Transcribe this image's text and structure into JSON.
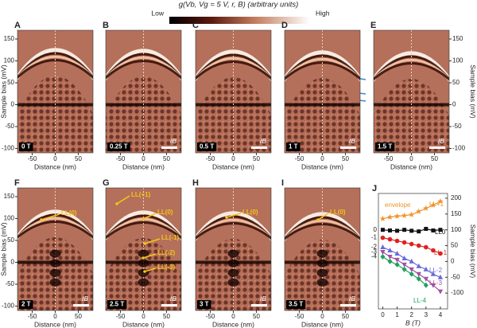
{
  "title": "g(Vb, Vg = 5 V, r, B) (arbitrary units)",
  "colorbar": {
    "low": "Low",
    "high": "High"
  },
  "map_axes": {
    "xlabel": "Distance (nm)",
    "ylabel": "Sample bias (mV)",
    "xlim": [
      -82,
      82
    ],
    "ylim": [
      -110,
      170
    ],
    "xticks": [
      -50,
      0,
      50
    ],
    "yticks": [
      -100,
      -50,
      0,
      50,
      100,
      150
    ]
  },
  "panels": [
    {
      "letter": "A",
      "field": "0 T"
    },
    {
      "letter": "B",
      "field": "0.25 T",
      "scale": "ℓB"
    },
    {
      "letter": "C",
      "field": "0.5 T",
      "scale": "ℓB"
    },
    {
      "letter": "D",
      "field": "1 T",
      "scale": "ℓB"
    },
    {
      "letter": "E",
      "field": "1.5 T",
      "scale": "ℓB"
    },
    {
      "letter": "F",
      "field": "2 T",
      "scale": "ℓB",
      "annotations": [
        "LL(0)"
      ]
    },
    {
      "letter": "G",
      "field": "2.5 T",
      "scale": "ℓB",
      "annotations": [
        "LL(+1)",
        "LL(0)",
        "LL(-1)",
        "LL(-2)",
        "LL(-3)"
      ]
    },
    {
      "letter": "H",
      "field": "3 T",
      "scale": "ℓB",
      "annotations": [
        "LL(0)"
      ]
    },
    {
      "letter": "I",
      "field": "3.5 T",
      "scale": "ℓB",
      "annotations": [
        "LL(0)"
      ]
    }
  ],
  "chart_data": {
    "type": "line",
    "letter": "J",
    "xlabel": "B (T)",
    "ylabel": "Sample bias (mV)",
    "x": [
      0,
      0.5,
      1,
      1.5,
      2,
      2.5,
      3,
      3.5,
      4
    ],
    "xlim": [
      -0.3,
      4.5
    ],
    "ylim": [
      -150,
      215
    ],
    "xticks": [
      0,
      1,
      2,
      3,
      4
    ],
    "yticks": [
      -100,
      -50,
      0,
      50,
      100,
      150,
      200
    ],
    "series": [
      {
        "name": "envelope",
        "color": "#f0922a",
        "marker": "star",
        "values": [
          135,
          140,
          143,
          145,
          148,
          158,
          168,
          178,
          190
        ]
      },
      {
        "name": "LL0",
        "color": "#111111",
        "marker": "square",
        "values": [
          100,
          98,
          97,
          100,
          97,
          95,
          103,
          98,
          100
        ]
      },
      {
        "name": "LL-1",
        "color": "#e02020",
        "marker": "circle",
        "values": [
          75,
          70,
          65,
          60,
          55,
          50,
          45,
          35,
          25
        ]
      },
      {
        "name": "LL-2",
        "color": "#6a6ad8",
        "marker": "triangle",
        "values": [
          45,
          35,
          25,
          10,
          0,
          -15,
          -25,
          -40,
          -50
        ]
      },
      {
        "name": "LL-3",
        "color": "#a050a0",
        "marker": "triangle-down",
        "values": [
          30,
          15,
          5,
          -10,
          -25,
          -40,
          -55,
          -75,
          -95
        ]
      },
      {
        "name": "LL-4",
        "color": "#20a060",
        "marker": "diamond",
        "values": [
          15,
          0,
          -10,
          -25,
          -40,
          -55,
          -75,
          null,
          null
        ]
      }
    ],
    "annotations": [
      "LL+1"
    ],
    "n_labels": [
      "0",
      "-1",
      "-2",
      "-3",
      "-4"
    ]
  }
}
